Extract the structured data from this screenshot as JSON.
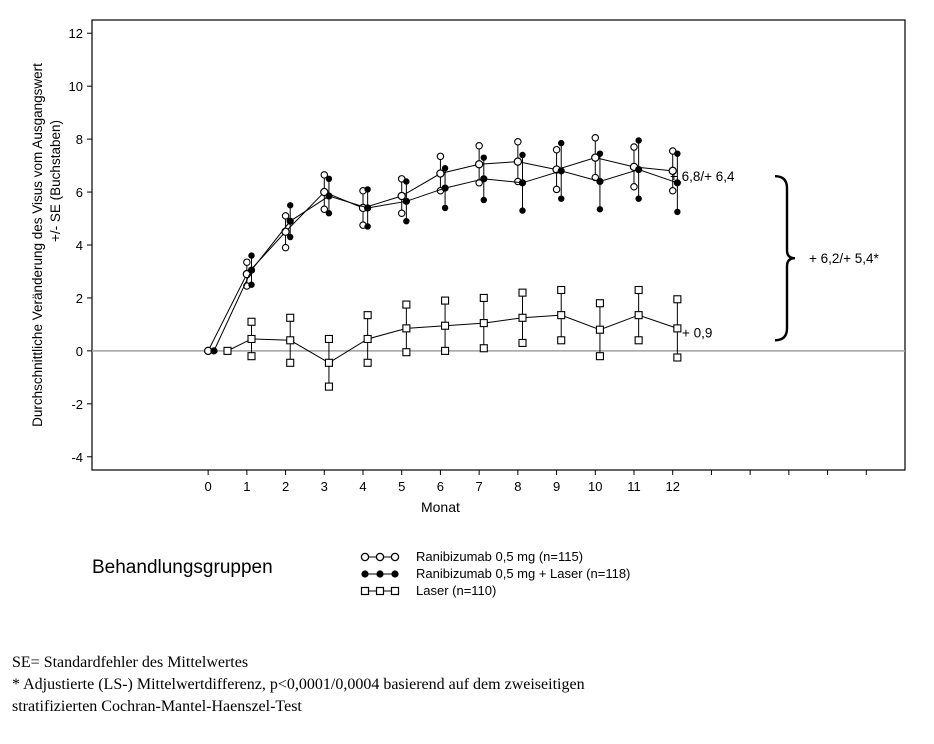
{
  "chart_data": {
    "type": "line",
    "xlabel": "Monat",
    "ylabel_line1": "Durchschnittliche Veränderung des Visus vom Ausgangswert",
    "ylabel_line2": "+/- SE (Buchstaben)",
    "xlim": [
      -3,
      18
    ],
    "ylim": [
      -4.5,
      12.5
    ],
    "x_ticks": [
      0,
      1,
      2,
      3,
      4,
      5,
      6,
      7,
      8,
      9,
      10,
      11,
      12
    ],
    "x_minor_ticks": [
      13,
      14,
      15,
      16,
      17
    ],
    "y_ticks": [
      -4,
      -2,
      0,
      2,
      4,
      6,
      8,
      10,
      12
    ],
    "reference_line_y": 0,
    "grid": false,
    "series": [
      {
        "name": "Ranibizumab 0,5 mg (n=115)",
        "marker": "open-circle",
        "x_offset": 0,
        "x": [
          0,
          1,
          2,
          3,
          4,
          5,
          6,
          7,
          8,
          9,
          10,
          11,
          12
        ],
        "y": [
          0,
          2.9,
          4.5,
          6.0,
          5.4,
          5.85,
          6.7,
          7.05,
          7.15,
          6.85,
          7.3,
          6.95,
          6.8
        ],
        "se": [
          0,
          0.45,
          0.6,
          0.65,
          0.65,
          0.65,
          0.65,
          0.7,
          0.75,
          0.75,
          0.75,
          0.75,
          0.75
        ]
      },
      {
        "name": "Ranibizumab 0,5 mg + Laser (n=118)",
        "marker": "filled-circle",
        "x_offset": 0.12,
        "x": [
          0,
          1,
          2,
          3,
          4,
          5,
          6,
          7,
          8,
          9,
          10,
          11,
          12
        ],
        "y": [
          0,
          3.05,
          4.9,
          5.85,
          5.4,
          5.65,
          6.15,
          6.5,
          6.35,
          6.8,
          6.4,
          6.85,
          6.35
        ],
        "se": [
          0,
          0.55,
          0.6,
          0.65,
          0.7,
          0.75,
          0.75,
          0.8,
          1.05,
          1.05,
          1.05,
          1.1,
          1.1
        ]
      },
      {
        "name": "Laser (n=110)",
        "marker": "open-square",
        "x_offset": 0.12,
        "x": [
          0,
          1,
          2,
          3,
          4,
          5,
          6,
          7,
          8,
          9,
          10,
          11,
          12
        ],
        "y": [
          0,
          0.45,
          0.4,
          -0.45,
          0.45,
          0.85,
          0.95,
          1.05,
          1.25,
          1.35,
          0.8,
          1.35,
          0.85
        ],
        "se": [
          0,
          0.65,
          0.85,
          0.9,
          0.9,
          0.9,
          0.95,
          0.95,
          0.95,
          0.95,
          1.0,
          0.95,
          1.1
        ]
      }
    ],
    "annotations": [
      {
        "text": "+ 6,8/+ 6,4"
      },
      {
        "text": "+ 0,9"
      },
      {
        "text": "+ 6,2/+ 5,4*"
      }
    ]
  },
  "legend": {
    "title": "Behandlungsgruppen",
    "items": [
      "Ranibizumab 0,5 mg (n=115)",
      "Ranibizumab 0,5 mg + Laser (n=118)",
      "Laser (n=110)"
    ]
  },
  "footnotes": [
    "SE= Standardfehler des Mittelwertes",
    "* Adjustierte (LS-) Mittelwertdifferenz, p<0,0001/0,0004 basierend auf dem zweiseitigen",
    "stratifizierten Cochran-Mantel-Haenszel-Test"
  ]
}
